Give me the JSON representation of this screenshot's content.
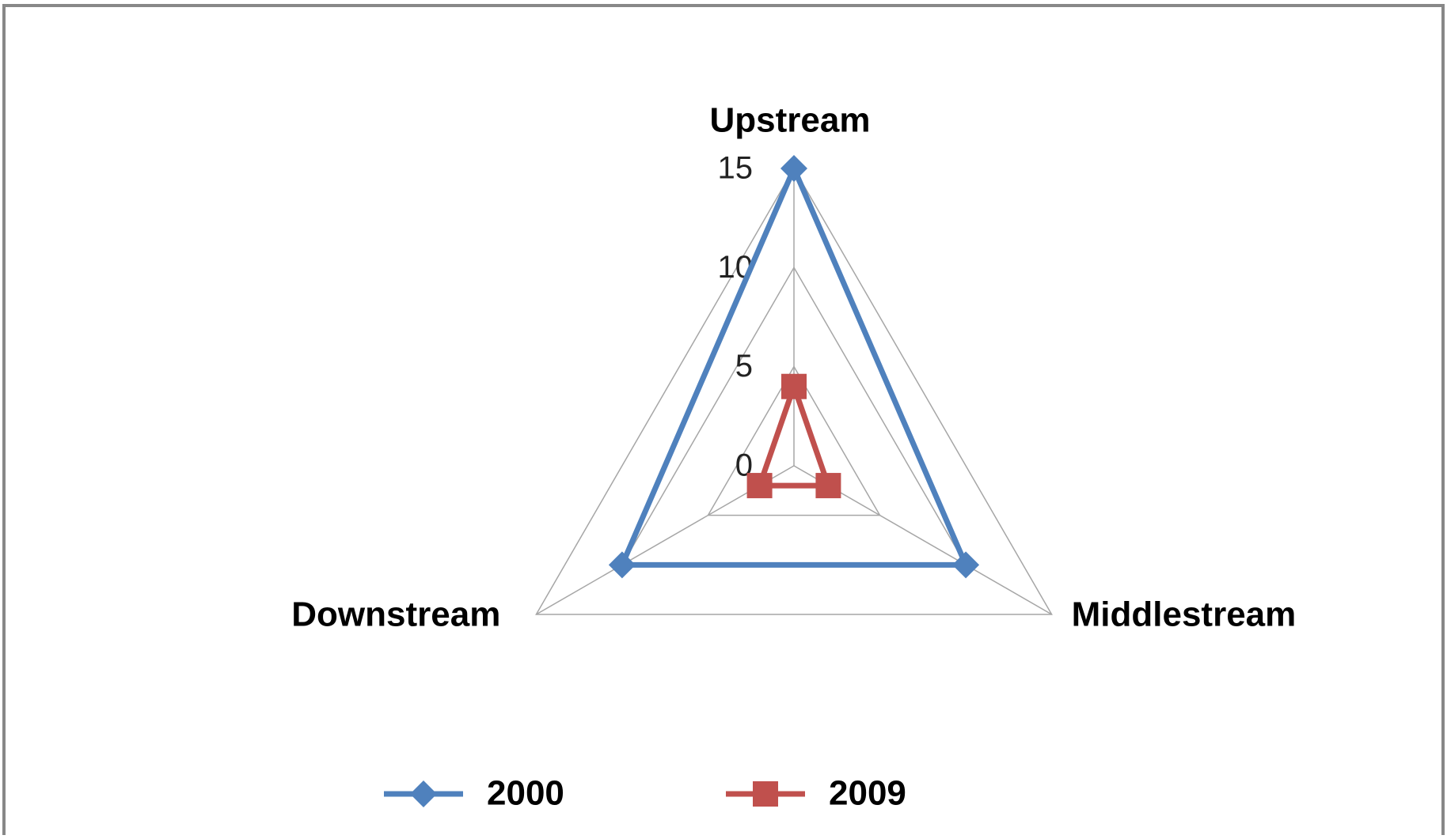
{
  "chart_data": {
    "type": "radar",
    "categories": [
      "Upstream",
      "Middlestream",
      "Downstream"
    ],
    "series": [
      {
        "name": "2000",
        "color": "#4f81bd",
        "marker": "diamond",
        "values": [
          15,
          10,
          10
        ]
      },
      {
        "name": "2009",
        "color": "#c0504d",
        "marker": "square",
        "values": [
          4,
          2,
          2
        ]
      }
    ],
    "ylim": [
      0,
      15
    ],
    "yticks": [
      0,
      5,
      10,
      15
    ],
    "grid": true,
    "legend": "bottom"
  }
}
